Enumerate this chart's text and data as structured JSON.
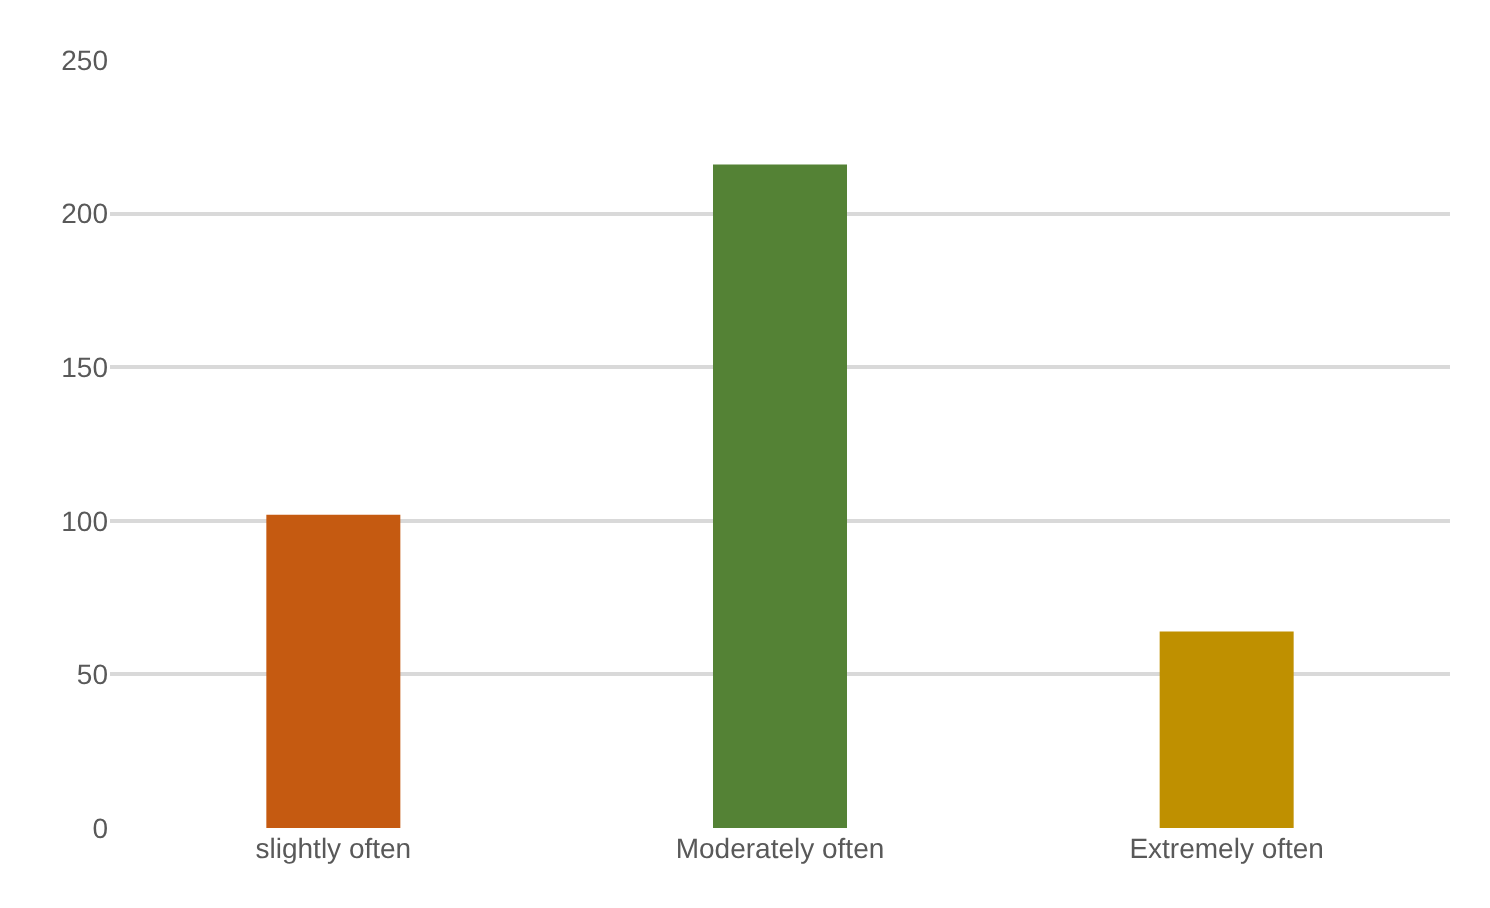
{
  "chart_data": {
    "type": "bar",
    "categories": [
      "slightly often",
      "Moderately often",
      "Extremely often"
    ],
    "values": [
      102,
      216,
      64
    ],
    "colors": [
      "#c55a11",
      "#548235",
      "#bf9000"
    ],
    "ylim": [
      0,
      250
    ],
    "yticks": [
      0,
      50,
      100,
      150,
      200,
      250
    ],
    "grid": "y"
  }
}
